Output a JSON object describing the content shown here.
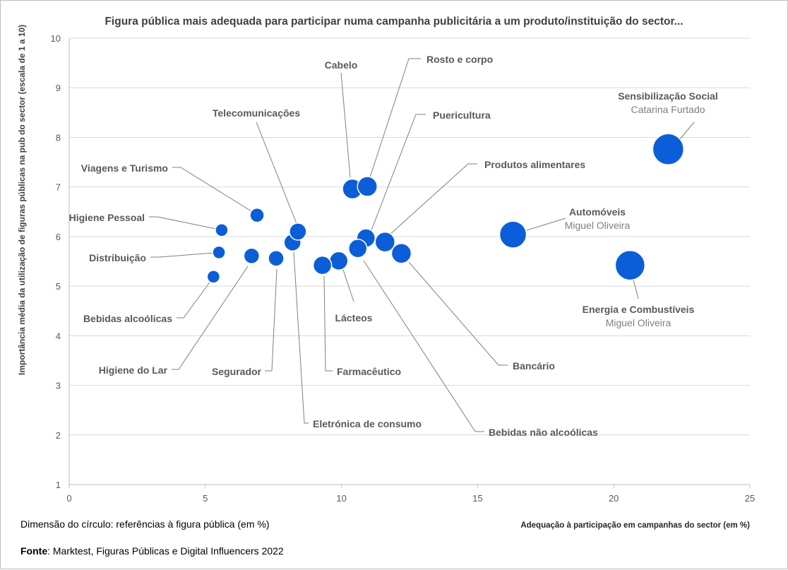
{
  "chart_data": {
    "type": "scatter",
    "title": "Figura pública mais adequada para participar numa campanha publicitária a um produto/instituição do sector...",
    "xlabel": "Adequação à participação em campanhas do sector (em %)",
    "ylabel": "Importância média da utilização de figuras públicas na pub do sector (escala de 1 a 10)",
    "xlim": [
      0,
      25
    ],
    "ylim": [
      1,
      10
    ],
    "xticks": [
      "0",
      "5",
      "10",
      "15",
      "20",
      "25"
    ],
    "yticks": [
      "1",
      "2",
      "3",
      "4",
      "5",
      "6",
      "7",
      "8",
      "9",
      "10"
    ],
    "grid": true,
    "points": [
      {
        "name": "Sensibilização Social",
        "figure": "Catarina Furtado",
        "x": 22.0,
        "y": 7.76,
        "size": 22
      },
      {
        "name": "Automóveis",
        "figure": "Miguel Oliveira",
        "x": 16.3,
        "y": 6.04,
        "size": 19
      },
      {
        "name": "Energia e Combustíveis",
        "figure": "Miguel Oliveira",
        "x": 20.6,
        "y": 5.42,
        "size": 21
      },
      {
        "name": "Cabelo",
        "figure": "",
        "x": 10.4,
        "y": 6.96,
        "size": 14
      },
      {
        "name": "Rosto e corpo",
        "figure": "",
        "x": 10.95,
        "y": 7.01,
        "size": 14
      },
      {
        "name": "Puericultura",
        "figure": "",
        "x": 10.9,
        "y": 5.97,
        "size": 13
      },
      {
        "name": "Produtos alimentares",
        "figure": "",
        "x": 11.6,
        "y": 5.89,
        "size": 14
      },
      {
        "name": "Bancário",
        "figure": "",
        "x": 12.2,
        "y": 5.66,
        "size": 14
      },
      {
        "name": "Bebidas não alcoólicas",
        "figure": "",
        "x": 10.6,
        "y": 5.76,
        "size": 13
      },
      {
        "name": "Lácteos",
        "figure": "",
        "x": 9.9,
        "y": 5.51,
        "size": 13
      },
      {
        "name": "Farmacêutico",
        "figure": "",
        "x": 9.3,
        "y": 5.42,
        "size": 13
      },
      {
        "name": "Eletrónica de consumo",
        "figure": "",
        "x": 8.2,
        "y": 5.88,
        "size": 12
      },
      {
        "name": "Telecomunicações",
        "figure": "",
        "x": 8.4,
        "y": 6.1,
        "size": 12
      },
      {
        "name": "Segurador",
        "figure": "",
        "x": 7.6,
        "y": 5.56,
        "size": 11
      },
      {
        "name": "Higiene do Lar",
        "figure": "",
        "x": 6.7,
        "y": 5.61,
        "size": 11
      },
      {
        "name": "Viagens e Turismo",
        "figure": "",
        "x": 6.9,
        "y": 6.43,
        "size": 10
      },
      {
        "name": "Higiene Pessoal",
        "figure": "",
        "x": 5.6,
        "y": 6.13,
        "size": 9
      },
      {
        "name": "Distribuição",
        "figure": "",
        "x": 5.5,
        "y": 5.68,
        "size": 9
      },
      {
        "name": "Bebidas alcoólicas",
        "figure": "",
        "x": 5.3,
        "y": 5.19,
        "size": 9
      }
    ]
  },
  "footer": {
    "size_note": "Dimensão do círculo: referências à figura pública (em %)",
    "source_label": "Fonte",
    "source_text": ": Marktest, Figuras Públicas e Digital Influencers 2022"
  }
}
